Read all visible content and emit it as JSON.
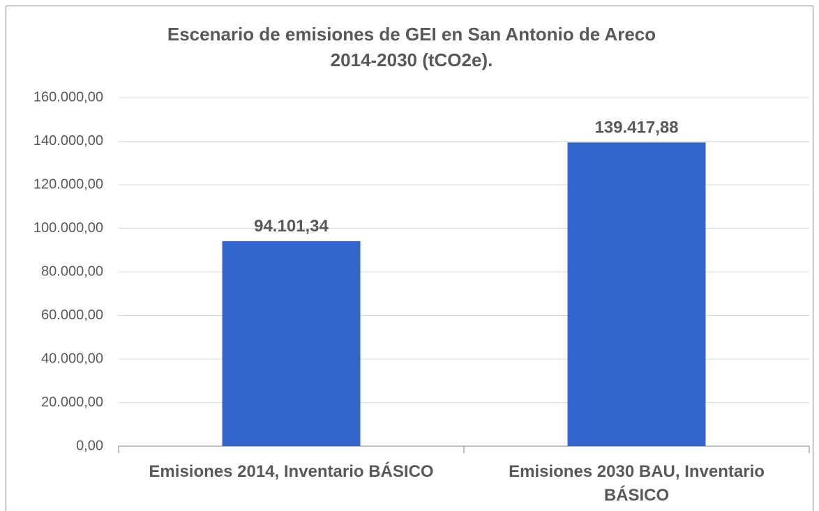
{
  "chart_data": {
    "type": "bar",
    "title": "Escenario de emisiones de GEI en San Antonio de Areco 2014-2030 (tCO2e).",
    "categories": [
      "Emisiones 2014, Inventario BÁSICO",
      "Emisiones 2030 BAU, Inventario BÁSICO"
    ],
    "values": [
      94101.34,
      139417.88
    ],
    "value_labels": [
      "94.101,34",
      "139.417,88"
    ],
    "color": "#3366cc",
    "ylim": [
      0,
      160000
    ],
    "yticks": [
      {
        "value": 0,
        "label": "0,00"
      },
      {
        "value": 20000,
        "label": "20.000,00"
      },
      {
        "value": 40000,
        "label": "40.000,00"
      },
      {
        "value": 60000,
        "label": "60.000,00"
      },
      {
        "value": 80000,
        "label": "80.000,00"
      },
      {
        "value": 100000,
        "label": "100.000,00"
      },
      {
        "value": 120000,
        "label": "120.000,00"
      },
      {
        "value": 140000,
        "label": "140.000,00"
      },
      {
        "value": 160000,
        "label": "160.000,00"
      }
    ],
    "grid": true
  }
}
